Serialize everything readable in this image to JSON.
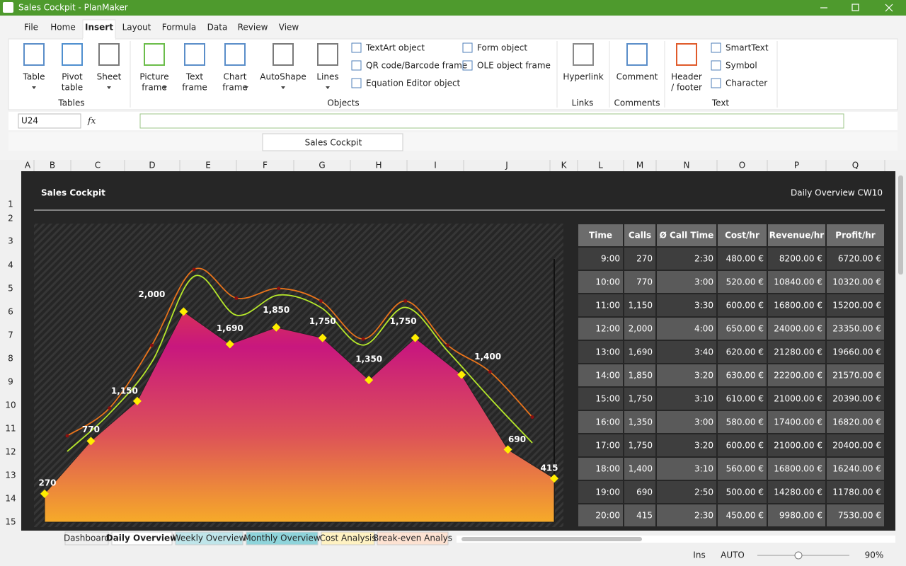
{
  "window": {
    "title": "Sales Cockpit - PlanMaker"
  },
  "menu": [
    "File",
    "Home",
    "Insert",
    "Layout",
    "Formula",
    "Data",
    "Review",
    "View"
  ],
  "ribbon": {
    "large": [
      [
        "Table"
      ],
      [
        "Pivot",
        "table"
      ],
      [
        "Sheet"
      ],
      [
        "Picture",
        "frame"
      ],
      [
        "Text",
        "frame"
      ],
      [
        "Chart",
        "frame"
      ],
      [
        "AutoShape"
      ],
      [
        "Lines"
      ],
      [
        "Hyperlink"
      ],
      [
        "Comment"
      ],
      [
        "Header",
        "/ footer"
      ]
    ],
    "small": [
      "TextArt object",
      "QR code/Barcode frame",
      "Equation Editor object",
      "Form object",
      "OLE object frame",
      "SmartText",
      "Symbol",
      "Character"
    ],
    "groups": [
      "Tables",
      "Objects",
      "Links",
      "Comments",
      "Text"
    ]
  },
  "formula_bar": {
    "cell": "U24",
    "fx": "fx"
  },
  "document_tab": "Sales Cockpit",
  "columns": [
    "A",
    "B",
    "C",
    "D",
    "E",
    "F",
    "G",
    "H",
    "I",
    "J",
    "K",
    "L",
    "M",
    "N",
    "O",
    "P",
    "Q"
  ],
  "rows": [
    1,
    2,
    3,
    4,
    5,
    6,
    7,
    8,
    9,
    10,
    11,
    12,
    13,
    14,
    15
  ],
  "sheet": {
    "title": "Sales Cockpit",
    "subtitle": "Daily Overview CW10"
  },
  "chart_data": {
    "type": "area",
    "values": [
      270,
      770,
      1150,
      2000,
      1690,
      1850,
      1750,
      1350,
      1750,
      1400,
      690,
      415
    ],
    "value_labels": [
      "270",
      "770",
      "1,150",
      "2,000",
      "1,690",
      "1,850",
      "1,750",
      "1,350",
      "1,750",
      "1,400",
      "690",
      "415"
    ],
    "gradient": [
      "#ee5424",
      "#c8177e",
      "#dd5258",
      "#f6aa29"
    ],
    "marker_color": "#ffee00",
    "ylim": [
      0,
      2500
    ],
    "y2lim": [
      0,
      25000
    ],
    "lines": [
      {
        "color": "#e8731a",
        "axis": "y2",
        "values": [
          8200,
          10840,
          16800,
          24000,
          21280,
          22200,
          21000,
          17400,
          21000,
          16800,
          14280,
          9980
        ]
      },
      {
        "color": "#b6e82a",
        "axis": "y2",
        "values": [
          6720,
          10320,
          15200,
          23350,
          19660,
          21570,
          20390,
          16820,
          20400,
          16240,
          11780,
          7530
        ]
      }
    ]
  },
  "table": {
    "header": [
      "Time",
      "Calls",
      "Ø Call Time",
      "Cost/hr",
      "Revenue/hr",
      "Profit/hr"
    ],
    "rows": [
      [
        "9:00",
        "270",
        "2:30",
        "480.00 €",
        "8200.00 €",
        "6720.00 €"
      ],
      [
        "10:00",
        "770",
        "3:00",
        "520.00 €",
        "10840.00 €",
        "10320.00 €"
      ],
      [
        "11:00",
        "1,150",
        "3:30",
        "600.00 €",
        "16800.00 €",
        "15200.00 €"
      ],
      [
        "12:00",
        "2,000",
        "4:00",
        "650.00 €",
        "24000.00 €",
        "23350.00 €"
      ],
      [
        "13:00",
        "1,690",
        "3:40",
        "620.00 €",
        "21280.00 €",
        "19660.00 €"
      ],
      [
        "14:00",
        "1,850",
        "3:20",
        "630.00 €",
        "22200.00 €",
        "21570.00 €"
      ],
      [
        "15:00",
        "1,750",
        "3:10",
        "610.00 €",
        "21000.00 €",
        "20390.00 €"
      ],
      [
        "16:00",
        "1,350",
        "3:00",
        "580.00 €",
        "17400.00 €",
        "16820.00 €"
      ],
      [
        "17:00",
        "1,750",
        "3:20",
        "600.00 €",
        "21000.00 €",
        "20400.00 €"
      ],
      [
        "18:00",
        "1,400",
        "3:10",
        "560.00 €",
        "16800.00 €",
        "16240.00 €"
      ],
      [
        "19:00",
        "690",
        "2:50",
        "500.00 €",
        "14280.00 €",
        "11780.00 €"
      ],
      [
        "20:00",
        "415",
        "2:30",
        "450.00 €",
        "9980.00 €",
        "7530.00 €"
      ]
    ]
  },
  "sheet_tabs": [
    "Dashboard",
    "Daily Overview",
    "Weekly Overview",
    "Monthly Overview",
    "Cost Analysis",
    "Break-even Analys"
  ],
  "status": {
    "mode": "Ins",
    "calc": "AUTO",
    "zoom": "90%"
  }
}
